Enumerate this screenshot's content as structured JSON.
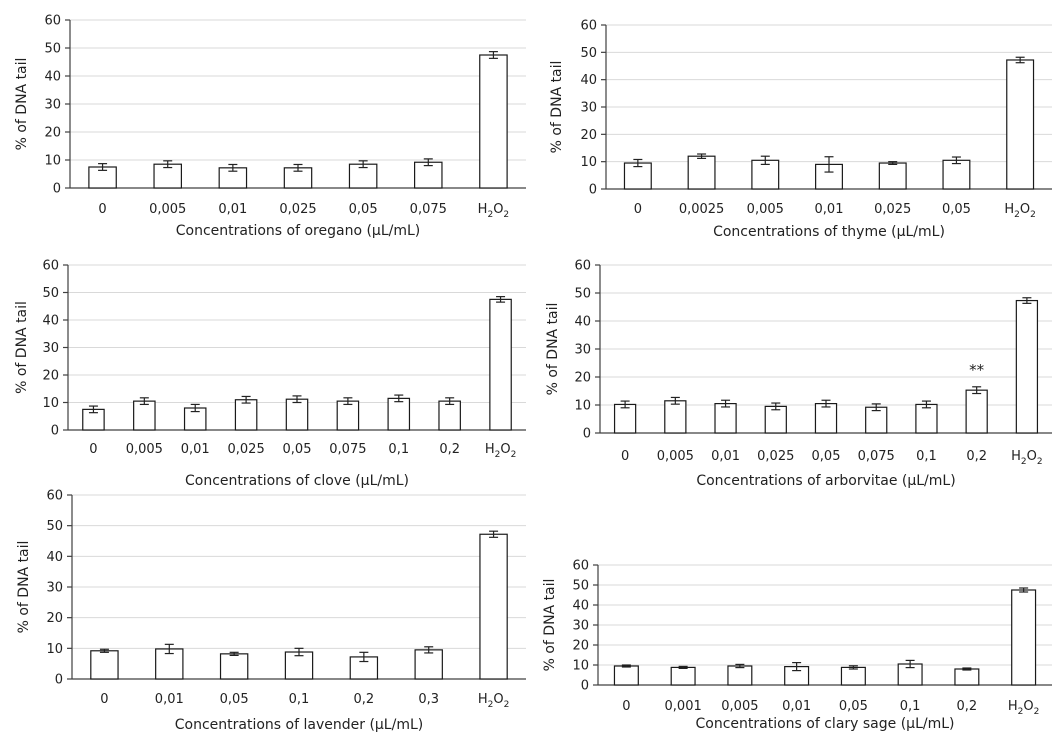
{
  "chart_data": [
    {
      "type": "bar",
      "ylabel": "% of DNA tail",
      "xlabel": "Concentrations of oregano (µL/mL)",
      "ylim": [
        0,
        60
      ],
      "yticks": [
        "0",
        "10",
        "20",
        "30",
        "40",
        "50",
        "60"
      ],
      "categories": [
        "0",
        "0,005",
        "0,01",
        "0,025",
        "0,05",
        "0,075",
        "H2O2"
      ],
      "values": [
        7.5,
        8.5,
        7.2,
        7.2,
        8.5,
        9.2,
        47.5
      ],
      "errors": [
        1.2,
        1.2,
        1.2,
        1.2,
        1.2,
        1.2,
        1.2
      ],
      "grid": "horizontal"
    },
    {
      "type": "bar",
      "ylabel": "% of DNA tail",
      "xlabel": "Concentrations of thyme (µL/mL)",
      "ylim": [
        0,
        60
      ],
      "yticks": [
        "0",
        "10",
        "20",
        "30",
        "40",
        "50",
        "60"
      ],
      "categories": [
        "0",
        "0,0025",
        "0,005",
        "0,01",
        "0,025",
        "0,05",
        "H2O2"
      ],
      "values": [
        9.5,
        12.0,
        10.5,
        9.0,
        9.5,
        10.5,
        47.2
      ],
      "errors": [
        1.3,
        0.8,
        1.5,
        2.8,
        0.5,
        1.2,
        1.0
      ],
      "grid": "horizontal"
    },
    {
      "type": "bar",
      "ylabel": "% of DNA tail",
      "xlabel": "Concentrations of clove (µL/mL)",
      "ylim": [
        0,
        60
      ],
      "yticks": [
        "0",
        "10",
        "20",
        "30",
        "40",
        "50",
        "60"
      ],
      "categories": [
        "0",
        "0,005",
        "0,01",
        "0,025",
        "0,05",
        "0,075",
        "0,1",
        "0,2",
        "H2O2"
      ],
      "values": [
        7.5,
        10.5,
        8.0,
        11.0,
        11.2,
        10.5,
        11.5,
        10.5,
        47.5
      ],
      "errors": [
        1.2,
        1.2,
        1.3,
        1.2,
        1.2,
        1.2,
        1.2,
        1.2,
        1.0
      ],
      "grid": "horizontal"
    },
    {
      "type": "bar",
      "ylabel": "% of  DNA tail",
      "xlabel": "Concentrations of arborvitae (µL/mL)",
      "ylim": [
        0,
        60
      ],
      "yticks": [
        "0",
        "10",
        "20",
        "30",
        "40",
        "50",
        "60"
      ],
      "categories": [
        "0",
        "0,005",
        "0,01",
        "0,025",
        "0,05",
        "0,075",
        "0,1",
        "0,2",
        "H2O2"
      ],
      "values": [
        10.2,
        11.5,
        10.5,
        9.5,
        10.5,
        9.2,
        10.2,
        15.3,
        47.3
      ],
      "errors": [
        1.2,
        1.2,
        1.2,
        1.2,
        1.2,
        1.2,
        1.2,
        1.2,
        1.0
      ],
      "annotations": [
        {
          "index": 7,
          "text": "**"
        }
      ],
      "grid": "horizontal"
    },
    {
      "type": "bar",
      "ylabel": "% of DNA tail",
      "xlabel": "Concentrations of lavender (µL/mL)",
      "ylim": [
        0,
        60
      ],
      "yticks": [
        "0",
        "10",
        "20",
        "30",
        "40",
        "50",
        "60"
      ],
      "categories": [
        "0",
        "0,01",
        "0,05",
        "0,1",
        "0,2",
        "0,3",
        "H2O2"
      ],
      "values": [
        9.2,
        9.8,
        8.2,
        8.8,
        7.2,
        9.5,
        47.2
      ],
      "errors": [
        0.5,
        1.5,
        0.5,
        1.2,
        1.5,
        1.0,
        1.0
      ],
      "grid": "horizontal"
    },
    {
      "type": "bar",
      "ylabel": "% of DNA tail",
      "xlabel": "Concentrations of clary sage (µL/mL)",
      "ylim": [
        0,
        60
      ],
      "yticks": [
        "0",
        "10",
        "20",
        "30",
        "40",
        "50",
        "60"
      ],
      "categories": [
        "0",
        "0,001",
        "0,005",
        "0,01",
        "0,05",
        "0,1",
        "0,2",
        "H2O2"
      ],
      "values": [
        9.5,
        8.8,
        9.5,
        9.2,
        8.8,
        10.5,
        8.0,
        47.5
      ],
      "errors": [
        0.5,
        0.5,
        0.8,
        2.0,
        0.8,
        1.8,
        0.5,
        1.0
      ],
      "grid": "horizontal"
    }
  ]
}
